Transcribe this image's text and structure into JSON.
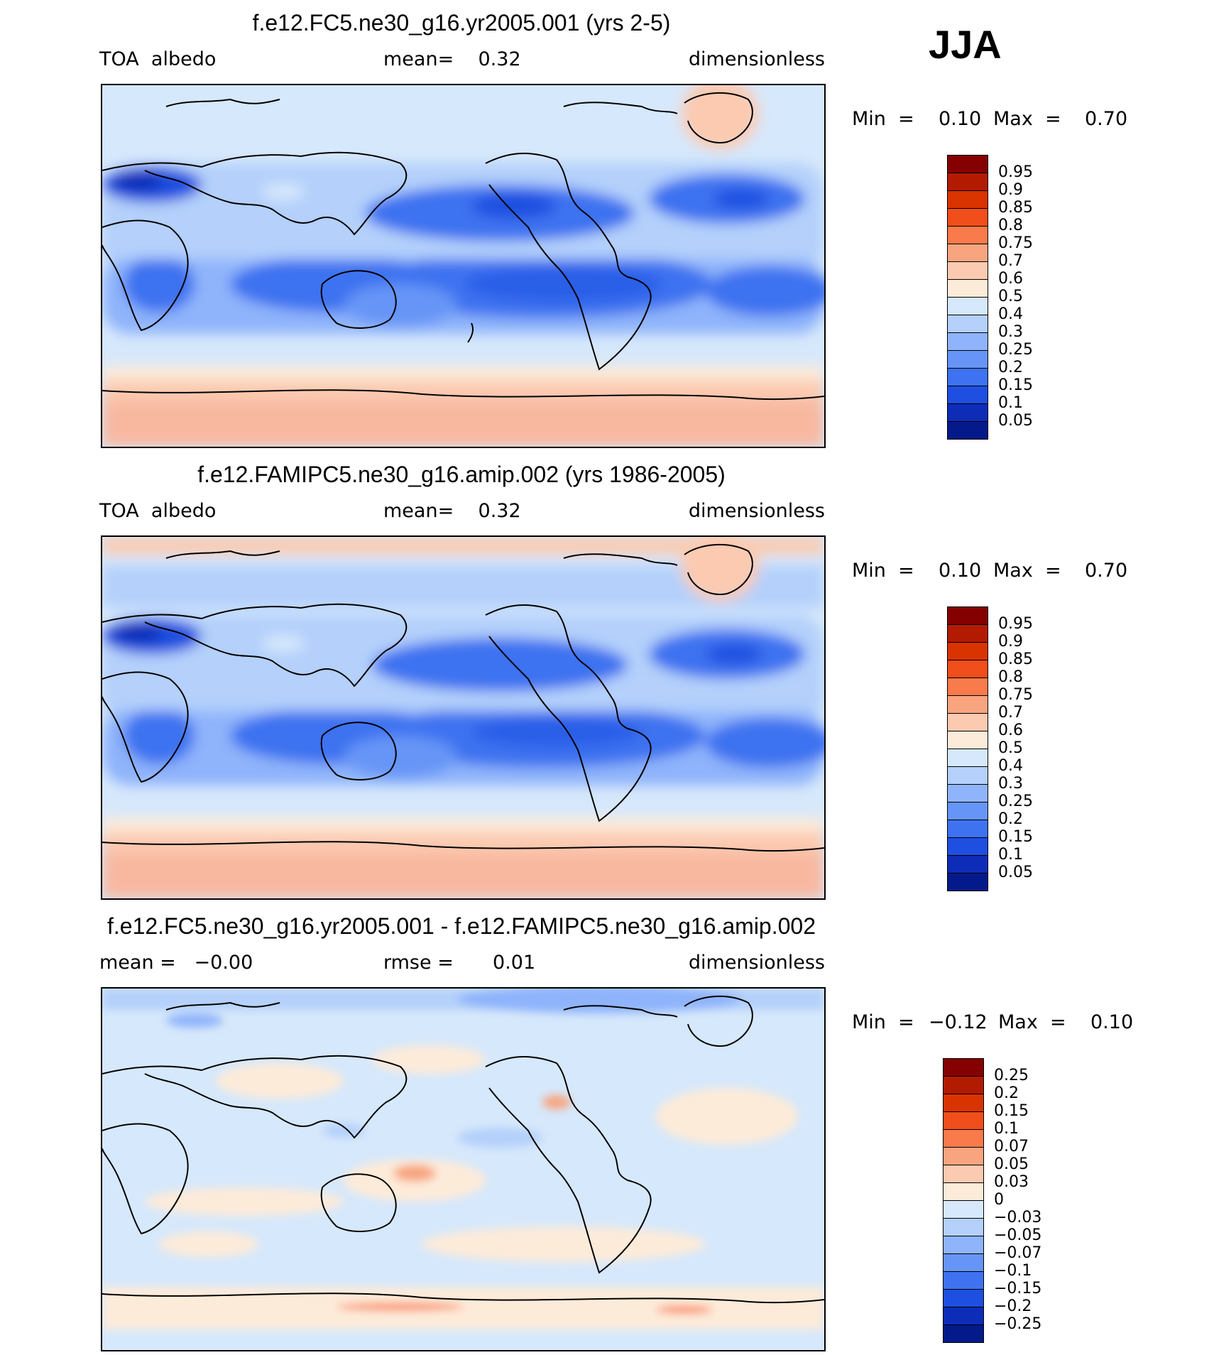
{
  "season": "JJA",
  "panels": [
    {
      "title": "f.e12.FC5.ne30_g16.yr2005.001 (yrs 2-5)",
      "variable": "TOA  albedo",
      "stat_text": "mean=    0.32",
      "units": "dimensionless",
      "min_label": "Min  =",
      "min_value": "0.10",
      "max_label": "Max  =",
      "max_value": "0.70",
      "colorbar": {
        "labels": [
          "0.95",
          "0.9",
          "0.85",
          "0.8",
          "0.75",
          "0.7",
          "0.6",
          "0.5",
          "0.4",
          "0.3",
          "0.25",
          "0.2",
          "0.15",
          "0.1",
          "0.05"
        ],
        "colors": [
          "#850000",
          "#b31b00",
          "#d93300",
          "#f04e1a",
          "#f97a4a",
          "#f8a57f",
          "#fbcab0",
          "#fdebd9",
          "#d6e8fb",
          "#b4d0fb",
          "#8fb4fb",
          "#6695f7",
          "#3e72f0",
          "#1f4fe0",
          "#0d2db8",
          "#051a8a"
        ]
      }
    },
    {
      "title": "f.e12.FAMIPC5.ne30_g16.amip.002 (yrs 1986-2005)",
      "variable": "TOA  albedo",
      "stat_text": "mean=    0.32",
      "units": "dimensionless",
      "min_label": "Min  =",
      "min_value": "0.10",
      "max_label": "Max  =",
      "max_value": "0.70",
      "colorbar": {
        "labels": [
          "0.95",
          "0.9",
          "0.85",
          "0.8",
          "0.75",
          "0.7",
          "0.6",
          "0.5",
          "0.4",
          "0.3",
          "0.25",
          "0.2",
          "0.15",
          "0.1",
          "0.05"
        ],
        "colors": [
          "#850000",
          "#b31b00",
          "#d93300",
          "#f04e1a",
          "#f97a4a",
          "#f8a57f",
          "#fbcab0",
          "#fdebd9",
          "#d6e8fb",
          "#b4d0fb",
          "#8fb4fb",
          "#6695f7",
          "#3e72f0",
          "#1f4fe0",
          "#0d2db8",
          "#051a8a"
        ]
      }
    },
    {
      "title": "f.e12.FC5.ne30_g16.yr2005.001 - f.e12.FAMIPC5.ne30_g16.amip.002",
      "stat_left": "mean =   −0.00",
      "stat_mid": "rmse =",
      "stat_mid_value": "0.01",
      "units": "dimensionless",
      "min_label": "Min  =",
      "min_value": "−0.12",
      "max_label": "Max  =",
      "max_value": "0.10",
      "colorbar": {
        "labels": [
          "0.25",
          "0.2",
          "0.15",
          "0.1",
          "0.07",
          "0.05",
          "0.03",
          "0",
          "−0.03",
          "−0.05",
          "−0.07",
          "−0.1",
          "−0.15",
          "−0.2",
          "−0.25"
        ],
        "colors": [
          "#850000",
          "#b31b00",
          "#d93300",
          "#f04e1a",
          "#f97a4a",
          "#f8a57f",
          "#fbcab0",
          "#fdebd9",
          "#d6e8fb",
          "#b4d0fb",
          "#8fb4fb",
          "#6695f7",
          "#3e72f0",
          "#1f4fe0",
          "#0d2db8",
          "#051a8a"
        ]
      }
    }
  ]
}
